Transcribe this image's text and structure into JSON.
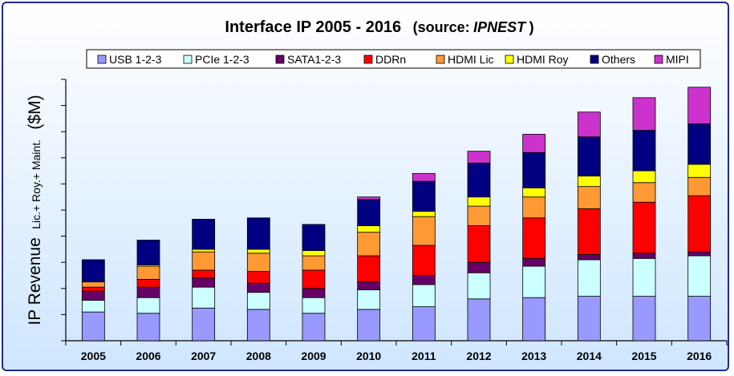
{
  "chart_data": {
    "type": "bar",
    "stacked": true,
    "title": "Interface IP  2005 - 2016",
    "title_source_prefix": "(source:",
    "title_source_name": "IPNEST",
    "title_source_suffix": ")",
    "ylabel_main": "IP Revenue",
    "ylabel_sub": "Lic.+ Roy.+ Maint.",
    "ylabel_unit": "($M)",
    "ylim": [
      0,
      1000
    ],
    "ytick_step": 100,
    "grid": false,
    "legend_position": "top",
    "categories": [
      "2005",
      "2006",
      "2007",
      "2008",
      "2009",
      "2010",
      "2011",
      "2012",
      "2013",
      "2014",
      "2015",
      "2016"
    ],
    "series": [
      {
        "name": "USB 1-2-3",
        "color": "#9999ff",
        "values": [
          110,
          105,
          125,
          120,
          105,
          120,
          130,
          160,
          165,
          170,
          170,
          170
        ]
      },
      {
        "name": "PCIe 1-2-3",
        "color": "#ccffff",
        "values": [
          45,
          60,
          80,
          65,
          60,
          75,
          85,
          100,
          120,
          140,
          145,
          155
        ]
      },
      {
        "name": "SATA1-2-3",
        "color": "#660066",
        "values": [
          35,
          40,
          35,
          35,
          35,
          30,
          35,
          40,
          30,
          20,
          20,
          15
        ]
      },
      {
        "name": "DDRn",
        "color": "#ff0000",
        "values": [
          15,
          30,
          30,
          45,
          70,
          100,
          115,
          140,
          155,
          175,
          195,
          215
        ]
      },
      {
        "name": "HDMI Lic",
        "color": "#ff9933",
        "values": [
          20,
          50,
          70,
          70,
          55,
          90,
          110,
          75,
          80,
          85,
          75,
          70
        ]
      },
      {
        "name": "HDMI Roy",
        "color": "#ffff00",
        "values": [
          0,
          5,
          10,
          15,
          20,
          25,
          20,
          35,
          35,
          40,
          45,
          50
        ]
      },
      {
        "name": "Others",
        "color": "#000080",
        "values": [
          85,
          95,
          115,
          120,
          100,
          100,
          115,
          130,
          135,
          150,
          155,
          155
        ]
      },
      {
        "name": "MIPI",
        "color": "#cc33cc",
        "values": [
          0,
          0,
          0,
          0,
          0,
          10,
          30,
          45,
          70,
          95,
          125,
          140
        ]
      }
    ]
  }
}
